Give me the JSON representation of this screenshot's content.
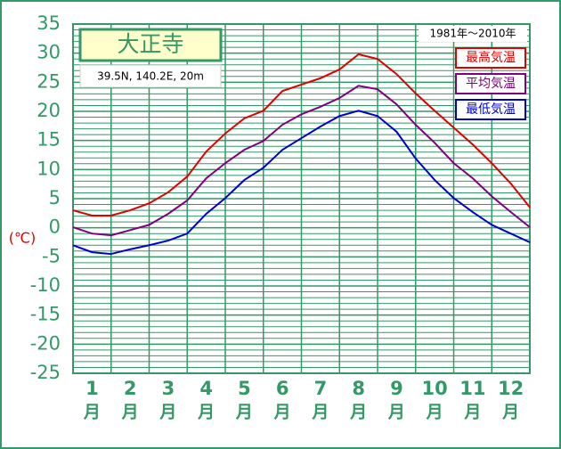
{
  "chart_data": {
    "type": "line",
    "title": "大正寺",
    "subtitle": "39.5N,  140.2E,  20m",
    "period": "1981年～2010年",
    "y_label": "(℃)",
    "months": [
      "1",
      "2",
      "3",
      "4",
      "5",
      "6",
      "7",
      "8",
      "9",
      "10",
      "11",
      "12"
    ],
    "month_suffix": "月",
    "x": [
      0,
      0.5,
      1,
      1.5,
      2,
      2.5,
      3,
      3.5,
      4,
      4.5,
      5,
      5.5,
      6,
      6.5,
      7,
      7.5,
      8,
      8.5,
      9,
      9.5,
      10,
      10.5,
      11,
      11.5,
      12
    ],
    "xlim": [
      0,
      12
    ],
    "xticks": [
      0,
      1,
      2,
      3,
      4,
      5,
      6,
      7,
      8,
      9,
      10,
      11,
      12
    ],
    "ylim": [
      -25,
      35
    ],
    "yticks": [
      35,
      30,
      25,
      20,
      15,
      10,
      5,
      0,
      -5,
      -10,
      -15,
      -20,
      -25
    ],
    "minor_grid": 1,
    "grid": true,
    "series": [
      {
        "name": "最高気温",
        "color": "#e00000",
        "values": [
          3.0,
          2.1,
          2.1,
          3.0,
          4.2,
          6.1,
          8.8,
          13.1,
          16.2,
          18.8,
          20.1,
          23.5,
          24.6,
          25.7,
          27.2,
          29.8,
          29.0,
          26.4,
          23.1,
          20.1,
          17.2,
          14.3,
          11.1,
          7.6,
          3.5
        ]
      },
      {
        "name": "平均気温",
        "color": "#800080",
        "values": [
          0.1,
          -1.0,
          -1.3,
          -0.4,
          0.5,
          2.4,
          4.7,
          8.5,
          11.1,
          13.4,
          14.9,
          17.7,
          19.5,
          20.8,
          22.3,
          24.4,
          23.8,
          21.2,
          17.7,
          14.6,
          11.1,
          8.5,
          5.4,
          2.7,
          0.1
        ]
      },
      {
        "name": "最低気温",
        "color": "#0000cc",
        "values": [
          -3.0,
          -4.2,
          -4.5,
          -3.7,
          -3.0,
          -2.2,
          -1.0,
          2.4,
          5.1,
          8.2,
          10.3,
          13.4,
          15.4,
          17.4,
          19.2,
          20.1,
          19.2,
          16.5,
          11.9,
          8.2,
          5.1,
          2.7,
          0.5,
          -1.0,
          -2.5
        ]
      }
    ]
  }
}
